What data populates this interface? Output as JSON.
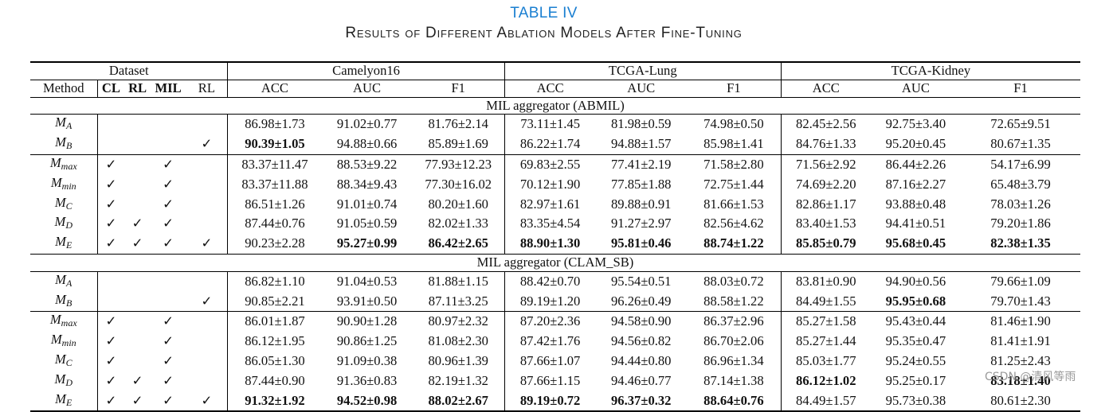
{
  "caption": {
    "label": "TABLE IV",
    "title": "Results of Different Ablation Models After Fine-Tuning"
  },
  "header": {
    "dataset_label": "Dataset",
    "groups": [
      "Camelyon16",
      "TCGA-Lung",
      "TCGA-Kidney"
    ],
    "method_label": "Method",
    "flag_columns": [
      "CL",
      "RL",
      "MIL",
      "RL"
    ],
    "metrics": [
      "ACC",
      "AUC",
      "F1"
    ]
  },
  "check_mark": "✓",
  "sections": [
    {
      "title": "MIL aggregator (ABMIL)",
      "rows": [
        {
          "m": "M",
          "sub": "A",
          "flags": [
            "",
            "",
            "",
            ""
          ],
          "vals": [
            "86.98±1.73",
            "91.02±0.77",
            "81.76±2.14",
            "73.11±1.45",
            "81.98±0.59",
            "74.98±0.50",
            "82.45±2.56",
            "92.75±3.40",
            "72.65±9.51"
          ],
          "bold": []
        },
        {
          "m": "M",
          "sub": "B",
          "flags": [
            "",
            "",
            "",
            "✓"
          ],
          "vals": [
            "90.39±1.05",
            "94.88±0.66",
            "85.89±1.69",
            "86.22±1.74",
            "94.88±1.57",
            "85.98±1.41",
            "84.76±1.33",
            "95.20±0.45",
            "80.67±1.35"
          ],
          "bold": [
            0
          ]
        },
        {
          "m": "M",
          "sub": "max",
          "flags": [
            "✓",
            "",
            "✓",
            ""
          ],
          "vals": [
            "83.37±11.47",
            "88.53±9.22",
            "77.93±12.23",
            "69.83±2.55",
            "77.41±2.19",
            "71.58±2.80",
            "71.56±2.92",
            "86.44±2.26",
            "54.17±6.99"
          ],
          "bold": []
        },
        {
          "m": "M",
          "sub": "min",
          "flags": [
            "✓",
            "",
            "✓",
            ""
          ],
          "vals": [
            "83.37±11.88",
            "88.34±9.43",
            "77.30±16.02",
            "70.12±1.90",
            "77.85±1.88",
            "72.75±1.44",
            "74.69±2.20",
            "87.16±2.27",
            "65.48±3.79"
          ],
          "bold": []
        },
        {
          "m": "M",
          "sub": "C",
          "flags": [
            "✓",
            "",
            "✓",
            ""
          ],
          "vals": [
            "86.51±1.26",
            "91.01±0.74",
            "80.20±1.60",
            "82.97±1.61",
            "89.88±0.91",
            "81.66±1.53",
            "82.86±1.17",
            "93.88±0.48",
            "78.03±1.26"
          ],
          "bold": []
        },
        {
          "m": "M",
          "sub": "D",
          "flags": [
            "✓",
            "✓",
            "✓",
            ""
          ],
          "vals": [
            "87.44±0.76",
            "91.05±0.59",
            "82.02±1.33",
            "83.35±4.54",
            "91.27±2.97",
            "82.56±4.62",
            "83.40±1.53",
            "94.41±0.51",
            "79.20±1.86"
          ],
          "bold": []
        },
        {
          "m": "M",
          "sub": "E",
          "flags": [
            "✓",
            "✓",
            "✓",
            "✓"
          ],
          "vals": [
            "90.23±2.28",
            "95.27±0.99",
            "86.42±2.65",
            "88.90±1.30",
            "95.81±0.46",
            "88.74±1.22",
            "85.85±0.79",
            "95.68±0.45",
            "82.38±1.35"
          ],
          "bold": [
            1,
            2,
            3,
            4,
            5,
            6,
            7,
            8
          ]
        }
      ]
    },
    {
      "title": "MIL aggregator (CLAM_SB)",
      "rows": [
        {
          "m": "M",
          "sub": "A",
          "flags": [
            "",
            "",
            "",
            ""
          ],
          "vals": [
            "86.82±1.10",
            "91.04±0.53",
            "81.88±1.15",
            "88.42±0.70",
            "95.54±0.51",
            "88.03±0.72",
            "83.81±0.90",
            "94.90±0.56",
            "79.66±1.09"
          ],
          "bold": []
        },
        {
          "m": "M",
          "sub": "B",
          "flags": [
            "",
            "",
            "",
            "✓"
          ],
          "vals": [
            "90.85±2.21",
            "93.91±0.50",
            "87.11±3.25",
            "89.19±1.20",
            "96.26±0.49",
            "88.58±1.22",
            "84.49±1.55",
            "95.95±0.68",
            "79.70±1.43"
          ],
          "bold": [
            7
          ]
        },
        {
          "m": "M",
          "sub": "max",
          "flags": [
            "✓",
            "",
            "✓",
            ""
          ],
          "vals": [
            "86.01±1.87",
            "90.90±1.28",
            "80.97±2.32",
            "87.20±2.36",
            "94.58±0.90",
            "86.37±2.96",
            "85.27±1.58",
            "95.43±0.44",
            "81.46±1.90"
          ],
          "bold": []
        },
        {
          "m": "M",
          "sub": "min",
          "flags": [
            "✓",
            "",
            "✓",
            ""
          ],
          "vals": [
            "86.12±1.95",
            "90.86±1.25",
            "81.08±2.30",
            "87.42±1.76",
            "94.56±0.82",
            "86.70±2.06",
            "85.27±1.44",
            "95.35±0.47",
            "81.41±1.91"
          ],
          "bold": []
        },
        {
          "m": "M",
          "sub": "C",
          "flags": [
            "✓",
            "",
            "✓",
            ""
          ],
          "vals": [
            "86.05±1.30",
            "91.09±0.38",
            "80.96±1.39",
            "87.66±1.07",
            "94.44±0.80",
            "86.96±1.34",
            "85.03±1.77",
            "95.24±0.55",
            "81.25±2.43"
          ],
          "bold": []
        },
        {
          "m": "M",
          "sub": "D",
          "flags": [
            "✓",
            "✓",
            "✓",
            ""
          ],
          "vals": [
            "87.44±0.90",
            "91.36±0.83",
            "82.19±1.32",
            "87.66±1.15",
            "94.46±0.77",
            "87.14±1.38",
            "86.12±1.02",
            "95.25±0.17",
            "83.18±1.40"
          ],
          "bold": [
            6,
            8
          ]
        },
        {
          "m": "M",
          "sub": "E",
          "flags": [
            "✓",
            "✓",
            "✓",
            "✓"
          ],
          "vals": [
            "91.32±1.92",
            "94.52±0.98",
            "88.02±2.67",
            "89.19±0.72",
            "96.37±0.32",
            "88.64±0.76",
            "84.49±1.57",
            "95.73±0.38",
            "80.61±2.30"
          ],
          "bold": [
            0,
            1,
            2,
            3,
            4,
            5
          ]
        }
      ]
    }
  ],
  "watermark": "CSDN @清风等雨"
}
